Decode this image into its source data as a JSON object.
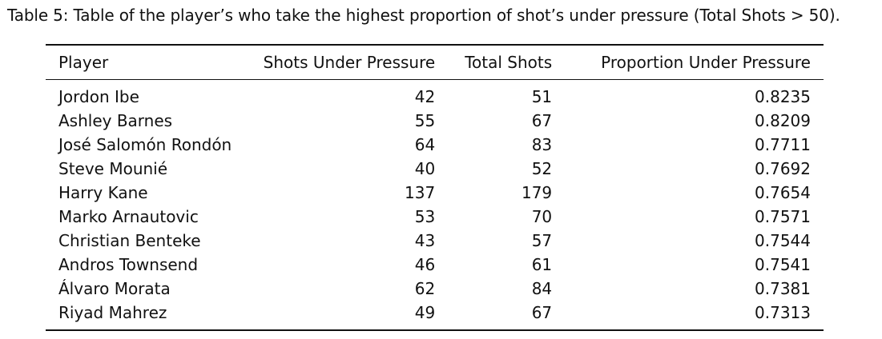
{
  "caption": "Table 5: Table of the player’s who take the highest proportion of shot’s under pressure (Total Shots > 50).",
  "table": {
    "columns": [
      "Player",
      "Shots Under Pressure",
      "Total Shots",
      "Proportion Under Pressure"
    ],
    "rows": [
      [
        "Jordon Ibe",
        "42",
        "51",
        "0.8235"
      ],
      [
        "Ashley Barnes",
        "55",
        "67",
        "0.8209"
      ],
      [
        "José Salomón Rondón",
        "64",
        "83",
        "0.7711"
      ],
      [
        "Steve Mounié",
        "40",
        "52",
        "0.7692"
      ],
      [
        "Harry Kane",
        "137",
        "179",
        "0.7654"
      ],
      [
        "Marko Arnautovic",
        "53",
        "70",
        "0.7571"
      ],
      [
        "Christian Benteke",
        "43",
        "57",
        "0.7544"
      ],
      [
        "Andros Townsend",
        "46",
        "61",
        "0.7541"
      ],
      [
        "Álvaro Morata",
        "62",
        "84",
        "0.7381"
      ],
      [
        "Riyad Mahrez",
        "49",
        "67",
        "0.7313"
      ]
    ]
  }
}
